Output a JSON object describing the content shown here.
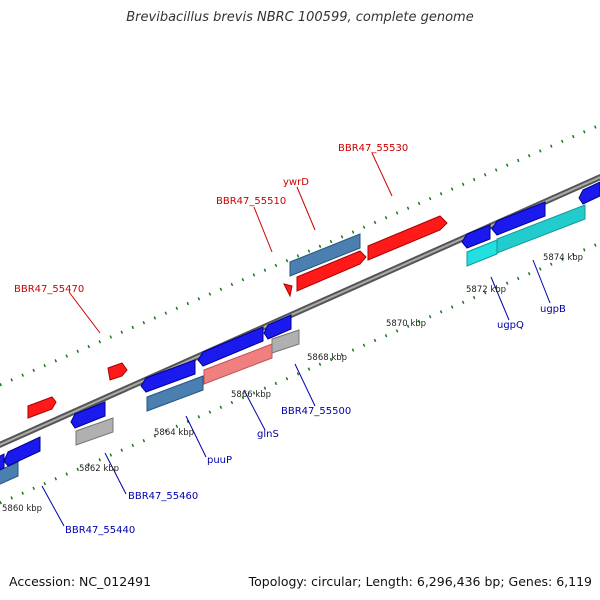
{
  "title": "Brevibacillus brevis NBRC 100599, complete genome",
  "footer": {
    "accession": "Accession: NC_012491",
    "stats": "Topology: circular; Length: 6,296,436 bp; Genes: 6,119"
  },
  "colors": {
    "forward_gene": "#ff1a1a",
    "forward_gene_light": "#f08080",
    "reverse_gene": "#1a1aee",
    "cds_steel": "#4a7fb0",
    "cds_cyan": "#22cccc",
    "cds_gray": "#b0b0b0",
    "label_forward": "#cc0000",
    "label_reverse": "#0000aa",
    "axis": "#888888",
    "tick": "#1a7a1a"
  },
  "scale_labels": [
    "5860 kbp",
    "5862 kbp",
    "5864 kbp",
    "5866 kbp",
    "5868 kbp",
    "5870 kbp",
    "5872 kbp",
    "5874 kbp"
  ],
  "forward_labels": [
    "BBR47_55470",
    "BBR47_55510",
    "ywrD",
    "BBR47_55530"
  ],
  "reverse_labels": [
    "BBR47_55440",
    "BBR47_55460",
    "puuP",
    "glnS",
    "BBR47_55500",
    "ugpQ",
    "ugpB"
  ]
}
